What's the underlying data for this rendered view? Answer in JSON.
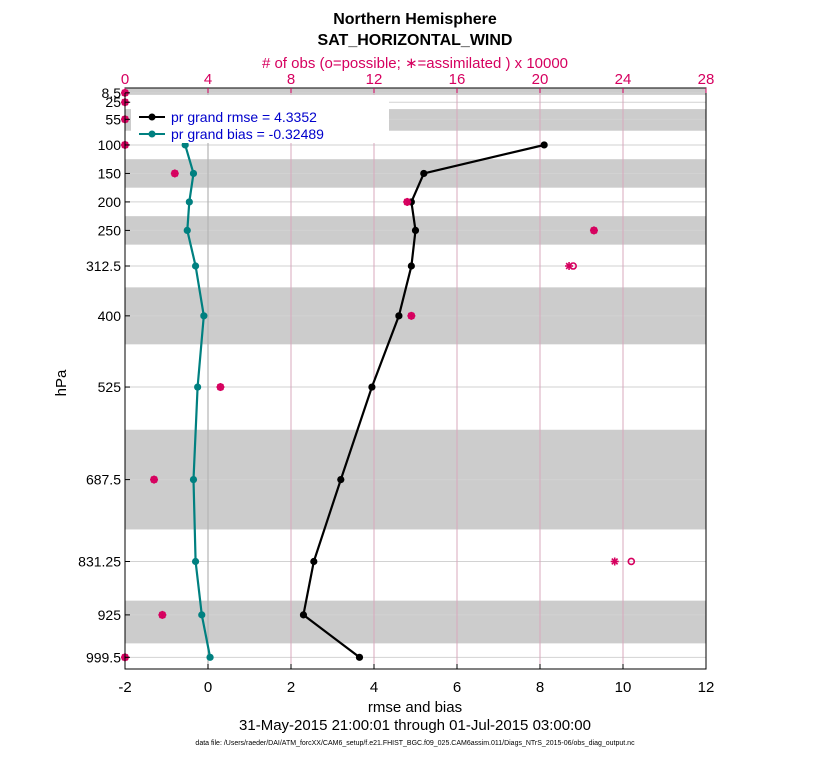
{
  "chart_data": {
    "type": "line",
    "title": [
      "Northern Hemisphere",
      "SAT_HORIZONTAL_WIND"
    ],
    "obs_axis_title": "# of obs (o=possible; ∗=assimilated ) x 10000",
    "xlabel": "rmse and bias",
    "ylabel": "hPa",
    "date_range": "31-May-2015 21:00:01 through 01-Jul-2015 03:00:00",
    "footnote": "data file: /Users/raeder/DAI/ATM_forcXX/CAM6_setup/f.e21.FHIST_BGC.f09_025.CAM6assim.011/Diags_NTrS_2015-06/obs_diag_output.nc",
    "xlim": [
      -2,
      12
    ],
    "x_ticks": [
      "-2",
      "0",
      "2",
      "4",
      "6",
      "8",
      "10",
      "12"
    ],
    "obs_xlim": [
      0,
      28
    ],
    "obs_ticks": [
      "0",
      "4",
      "8",
      "12",
      "16",
      "20",
      "24",
      "28"
    ],
    "y_levels": [
      8.5,
      25,
      55,
      100,
      150,
      200,
      250,
      312.5,
      400,
      525,
      687.5,
      831.25,
      925,
      999.5
    ],
    "y_tick_labels": [
      "8.5",
      "25",
      "55",
      "100",
      "150",
      "200",
      "250",
      "312.5",
      "400",
      "525",
      "687.5",
      "831.25",
      "925",
      "999.5"
    ],
    "shaded_bands": [
      [
        1,
        12
      ],
      [
        37,
        75
      ],
      [
        125,
        175
      ],
      [
        225,
        275
      ],
      [
        350,
        450
      ],
      [
        600,
        775
      ],
      [
        900,
        975
      ]
    ],
    "grid": true,
    "legend_position": "top-left",
    "series": [
      {
        "name": "pr grand rmse = 4.3352",
        "color": "#000000",
        "levels": [
          100,
          150,
          200,
          250,
          312.5,
          400,
          525,
          687.5,
          831.25,
          925,
          999.5
        ],
        "values": [
          8.1,
          5.2,
          4.9,
          5.0,
          4.9,
          4.6,
          3.95,
          3.2,
          2.55,
          2.3,
          3.65
        ]
      },
      {
        "name": "pr grand bias = -0.32489",
        "color": "#008080",
        "levels": [
          100,
          150,
          200,
          250,
          312.5,
          400,
          525,
          687.5,
          831.25,
          925,
          999.5
        ],
        "values": [
          -0.55,
          -0.35,
          -0.45,
          -0.5,
          -0.3,
          -0.1,
          -0.25,
          -0.35,
          -0.3,
          -0.15,
          0.05
        ]
      }
    ],
    "obs_possible": {
      "color": "#d6005f",
      "marker": "o",
      "levels": [
        8.5,
        25,
        55,
        100,
        150,
        200,
        250,
        312.5,
        400,
        525,
        687.5,
        831.25,
        925,
        999.5
      ],
      "values": [
        0,
        0,
        0,
        0,
        2.4,
        13.6,
        22.6,
        21.6,
        13.8,
        4.6,
        1.4,
        24.4,
        1.8,
        0
      ]
    },
    "obs_assimilated": {
      "color": "#d6005f",
      "marker": "*",
      "levels": [
        8.5,
        25,
        55,
        100,
        150,
        200,
        250,
        312.5,
        400,
        525,
        687.5,
        831.25,
        925,
        999.5
      ],
      "values": [
        0,
        0,
        0,
        0,
        2.4,
        13.6,
        22.6,
        21.4,
        13.8,
        4.6,
        1.4,
        23.6,
        1.8,
        0
      ]
    }
  }
}
